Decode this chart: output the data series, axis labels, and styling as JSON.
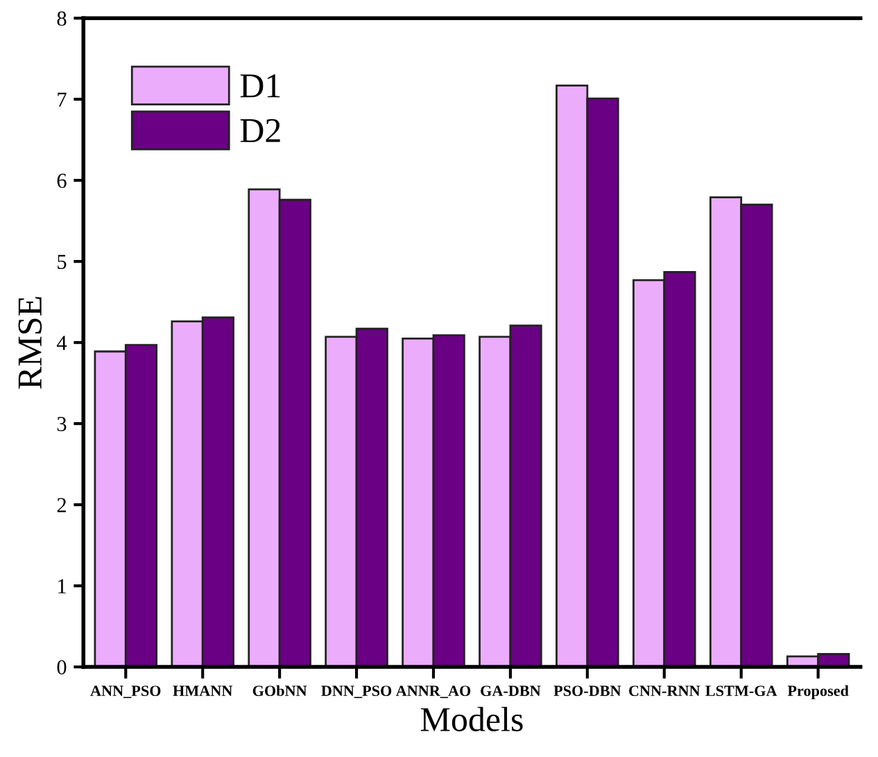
{
  "chart_data": {
    "type": "bar",
    "xlabel": "Models",
    "ylabel": "RMSE",
    "categories": [
      "ANN_PSO",
      "HMANN",
      "GObNN",
      "DNN_PSO",
      "ANNR_AO",
      "GA-DBN",
      "PSO-DBN",
      "CNN-RNN",
      "LSTM-GA",
      "Proposed"
    ],
    "series": [
      {
        "name": "D1",
        "color": "#ecacfc",
        "values": [
          3.89,
          4.26,
          5.89,
          4.07,
          4.05,
          4.07,
          7.17,
          4.77,
          5.79,
          0.13
        ]
      },
      {
        "name": "D2",
        "color": "#6a0084",
        "values": [
          3.97,
          4.31,
          5.76,
          4.17,
          4.09,
          4.21,
          7.01,
          4.87,
          5.7,
          0.16
        ]
      }
    ],
    "ylim": [
      0,
      8
    ],
    "yticks": [
      0,
      1,
      2,
      3,
      4,
      5,
      6,
      7,
      8
    ],
    "grid": false,
    "legend": "top left"
  }
}
